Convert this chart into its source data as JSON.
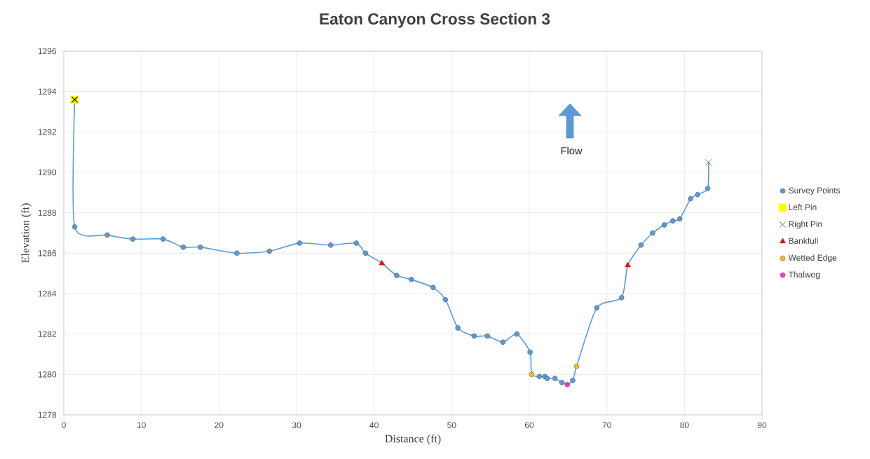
{
  "chart_data": {
    "type": "scatter",
    "title": "Eaton Canyon Cross Section 3",
    "xlabel": "Distance (ft)",
    "ylabel": "Elevation (ft)",
    "xlim": [
      0,
      90
    ],
    "xticks": [
      0,
      10,
      20,
      30,
      40,
      50,
      60,
      70,
      80,
      90
    ],
    "ylim": [
      1278,
      1296
    ],
    "yticks": [
      1278,
      1280,
      1282,
      1284,
      1286,
      1288,
      1290,
      1292,
      1294,
      1296
    ],
    "grid": true,
    "legend": "right",
    "annotations": [
      "Flow"
    ],
    "series": [
      {
        "type": "line",
        "color": "#5b9bd5",
        "marker": "none",
        "line_style": "solid",
        "x": [
          1.4,
          1.4,
          5.6,
          8.9,
          12.8,
          15.4,
          17.6,
          22.3,
          26.5,
          30.4,
          34.4,
          37.7,
          38.9,
          41.0,
          42.9,
          44.8,
          47.6,
          49.2,
          50.8,
          52.9,
          54.6,
          56.6,
          58.4,
          60.1,
          60.3,
          61.3,
          62.0,
          62.3,
          63.3,
          64.2,
          64.9,
          65.6,
          66.1,
          68.7,
          71.9,
          72.7,
          74.4,
          75.9,
          77.4,
          78.5,
          79.4,
          80.8,
          81.7,
          83.0,
          83.1
        ],
        "values": [
          1293.6,
          1287.3,
          1286.9,
          1286.7,
          1286.7,
          1286.3,
          1286.3,
          1286.0,
          1286.1,
          1286.5,
          1286.4,
          1286.5,
          1286.0,
          1285.5,
          1284.9,
          1284.7,
          1284.3,
          1283.7,
          1282.3,
          1281.9,
          1281.9,
          1281.6,
          1282.0,
          1281.1,
          1280.0,
          1279.9,
          1279.9,
          1279.8,
          1279.8,
          1279.6,
          1279.5,
          1279.7,
          1280.4,
          1283.3,
          1283.8,
          1285.4,
          1286.4,
          1287.0,
          1287.4,
          1287.6,
          1287.7,
          1288.7,
          1288.9,
          1289.2,
          1290.5
        ]
      },
      {
        "name": "Survey Points",
        "color": "#5b9bd5",
        "marker": "circle",
        "x": [
          1.4,
          5.6,
          8.9,
          12.8,
          15.4,
          17.6,
          22.3,
          26.5,
          30.4,
          34.4,
          37.7,
          38.9,
          42.9,
          44.8,
          47.6,
          49.2,
          50.8,
          52.9,
          54.6,
          56.6,
          58.4,
          60.1,
          61.3,
          62.0,
          62.3,
          63.3,
          64.2,
          65.6,
          68.7,
          71.9,
          74.4,
          75.9,
          77.4,
          78.5,
          79.4,
          80.8,
          81.7,
          83.0
        ],
        "values": [
          1287.3,
          1286.9,
          1286.7,
          1286.7,
          1286.3,
          1286.3,
          1286.0,
          1286.1,
          1286.5,
          1286.4,
          1286.5,
          1286.0,
          1284.9,
          1284.7,
          1284.3,
          1283.7,
          1282.3,
          1281.9,
          1281.9,
          1281.6,
          1282.0,
          1281.1,
          1279.9,
          1279.9,
          1279.8,
          1279.8,
          1279.6,
          1279.7,
          1283.3,
          1283.8,
          1286.4,
          1287.0,
          1287.4,
          1287.6,
          1287.7,
          1288.7,
          1288.9,
          1289.2
        ]
      },
      {
        "name": "Left Pin",
        "color": "#ffff00",
        "marker": "square",
        "x": [
          1.4
        ],
        "values": [
          1293.6
        ]
      },
      {
        "name": "Right Pin",
        "color": "#000000",
        "marker": "cross",
        "x": [
          83.1
        ],
        "values": [
          1290.5
        ]
      },
      {
        "name": "Bankfull",
        "color": "#ff0000",
        "marker": "triangle",
        "x": [
          41.0,
          72.7
        ],
        "values": [
          1285.5,
          1285.4
        ]
      },
      {
        "name": "Wetted Edge",
        "color": "#ffc000",
        "marker": "circle",
        "x": [
          60.3,
          66.1
        ],
        "values": [
          1280.0,
          1280.4
        ]
      },
      {
        "name": "Thalweg",
        "color": "#ff33cc",
        "marker": "circle",
        "x": [
          64.9
        ],
        "values": [
          1279.5
        ]
      }
    ]
  }
}
